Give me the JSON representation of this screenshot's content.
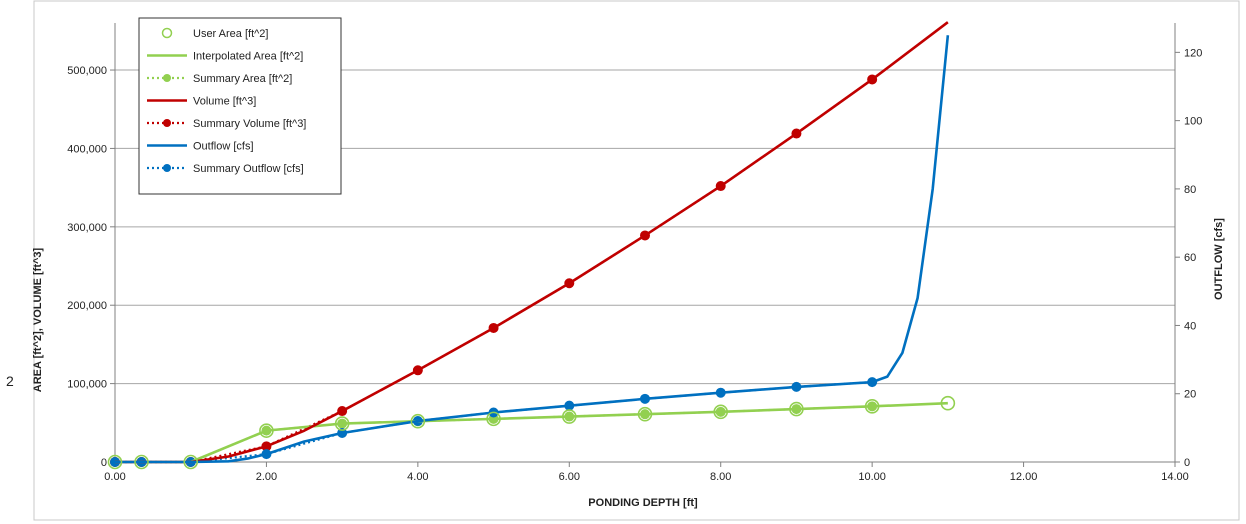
{
  "stray_label": "2",
  "colors": {
    "area": "#92D050",
    "volume": "#C00000",
    "outflow": "#0070C0",
    "grid": "#A6A6A6",
    "axis": "#808080"
  },
  "chart_data": {
    "type": "line",
    "xlabel": "PONDING DEPTH [ft]",
    "ylabel_left": "AREA [ft^2], VOLUME [ft^3]",
    "ylabel_right": "OUTFLOW [cfs]",
    "xlim": [
      0,
      14
    ],
    "ylim_left": [
      0,
      560000
    ],
    "ylim_right": [
      0,
      128.6
    ],
    "x_ticks": [
      0,
      2,
      4,
      6,
      8,
      10,
      12,
      14
    ],
    "x_tick_labels": [
      "0.00",
      "2.00",
      "4.00",
      "6.00",
      "8.00",
      "10.00",
      "12.00",
      "14.00"
    ],
    "y_left_ticks": [
      0,
      100000,
      200000,
      300000,
      400000,
      500000
    ],
    "y_left_tick_labels": [
      "0",
      "100,000",
      "200,000",
      "300,000",
      "400,000",
      "500,000"
    ],
    "y_right_ticks": [
      0,
      20,
      40,
      60,
      80,
      100,
      120
    ],
    "y_right_tick_labels": [
      "0",
      "20",
      "40",
      "60",
      "80",
      "100",
      "120"
    ],
    "grid": true,
    "legend_position": "top-left",
    "legend": [
      "User Area [ft^2]",
      "Interpolated Area [ft^2]",
      "Summary Area [ft^2]",
      "Volume [ft^3]",
      "Summary Volume [ft^3]",
      "Outflow [cfs]",
      "Summary Outflow [cfs]"
    ],
    "series": [
      {
        "name": "User Area [ft^2]",
        "axis": "left",
        "style": "hollow-marker",
        "x": [
          0,
          0.35,
          1,
          2,
          3,
          4,
          5,
          6,
          7,
          8,
          9,
          10,
          11
        ],
        "y": [
          0,
          0,
          0,
          40000,
          49000,
          52000,
          55000,
          58000,
          61000,
          64000,
          67500,
          71000,
          75000
        ]
      },
      {
        "name": "Interpolated Area [ft^2]",
        "axis": "left",
        "style": "solid",
        "x": [
          0,
          0.35,
          1,
          2,
          3,
          4,
          5,
          6,
          7,
          8,
          9,
          10,
          11
        ],
        "y": [
          0,
          0,
          0,
          40000,
          49000,
          52000,
          55000,
          58000,
          61000,
          64000,
          67500,
          71000,
          75000
        ]
      },
      {
        "name": "Summary Area [ft^2]",
        "axis": "left",
        "style": "dotted-marker",
        "x": [
          0,
          0.35,
          1,
          2,
          3,
          4,
          5,
          6,
          7,
          8,
          9,
          10
        ],
        "y": [
          0,
          0,
          0,
          40000,
          49000,
          52000,
          55000,
          58000,
          61000,
          64000,
          67500,
          71000
        ]
      },
      {
        "name": "Volume [ft^3]",
        "axis": "left",
        "style": "solid",
        "x": [
          0,
          0.35,
          1,
          1.5,
          2,
          2.5,
          3,
          4,
          5,
          6,
          7,
          8,
          9,
          10,
          11
        ],
        "y": [
          0,
          0,
          0,
          7000,
          20000,
          40000,
          65000,
          117000,
          171000,
          228000,
          289000,
          352000,
          419000,
          488000,
          561000
        ]
      },
      {
        "name": "Summary Volume [ft^3]",
        "axis": "left",
        "style": "dotted-marker",
        "x": [
          0,
          0.35,
          1,
          2,
          3,
          4,
          5,
          6,
          7,
          8,
          9,
          10
        ],
        "y": [
          0,
          0,
          0,
          20000,
          65000,
          117000,
          171000,
          228000,
          289000,
          352000,
          419000,
          488000
        ]
      },
      {
        "name": "Outflow [cfs]",
        "axis": "right",
        "style": "solid",
        "x": [
          0,
          0.35,
          1,
          1.5,
          1.75,
          2,
          2.5,
          3,
          4,
          5,
          6,
          7,
          8,
          9,
          10,
          10.2,
          10.4,
          10.6,
          10.8,
          11
        ],
        "y": [
          0,
          0,
          0,
          0.2,
          1,
          2.3,
          6,
          8.5,
          12,
          14.5,
          16.5,
          18.5,
          20.3,
          22,
          23.4,
          25,
          32,
          48,
          80,
          125
        ]
      },
      {
        "name": "Summary Outflow [cfs]",
        "axis": "right",
        "style": "dotted-marker",
        "x": [
          0,
          0.35,
          1,
          2,
          3,
          4,
          5,
          6,
          7,
          8,
          9,
          10
        ],
        "y": [
          0,
          0,
          0,
          2.3,
          8.5,
          12,
          14.5,
          16.5,
          18.5,
          20.3,
          22,
          23.4
        ]
      }
    ]
  }
}
